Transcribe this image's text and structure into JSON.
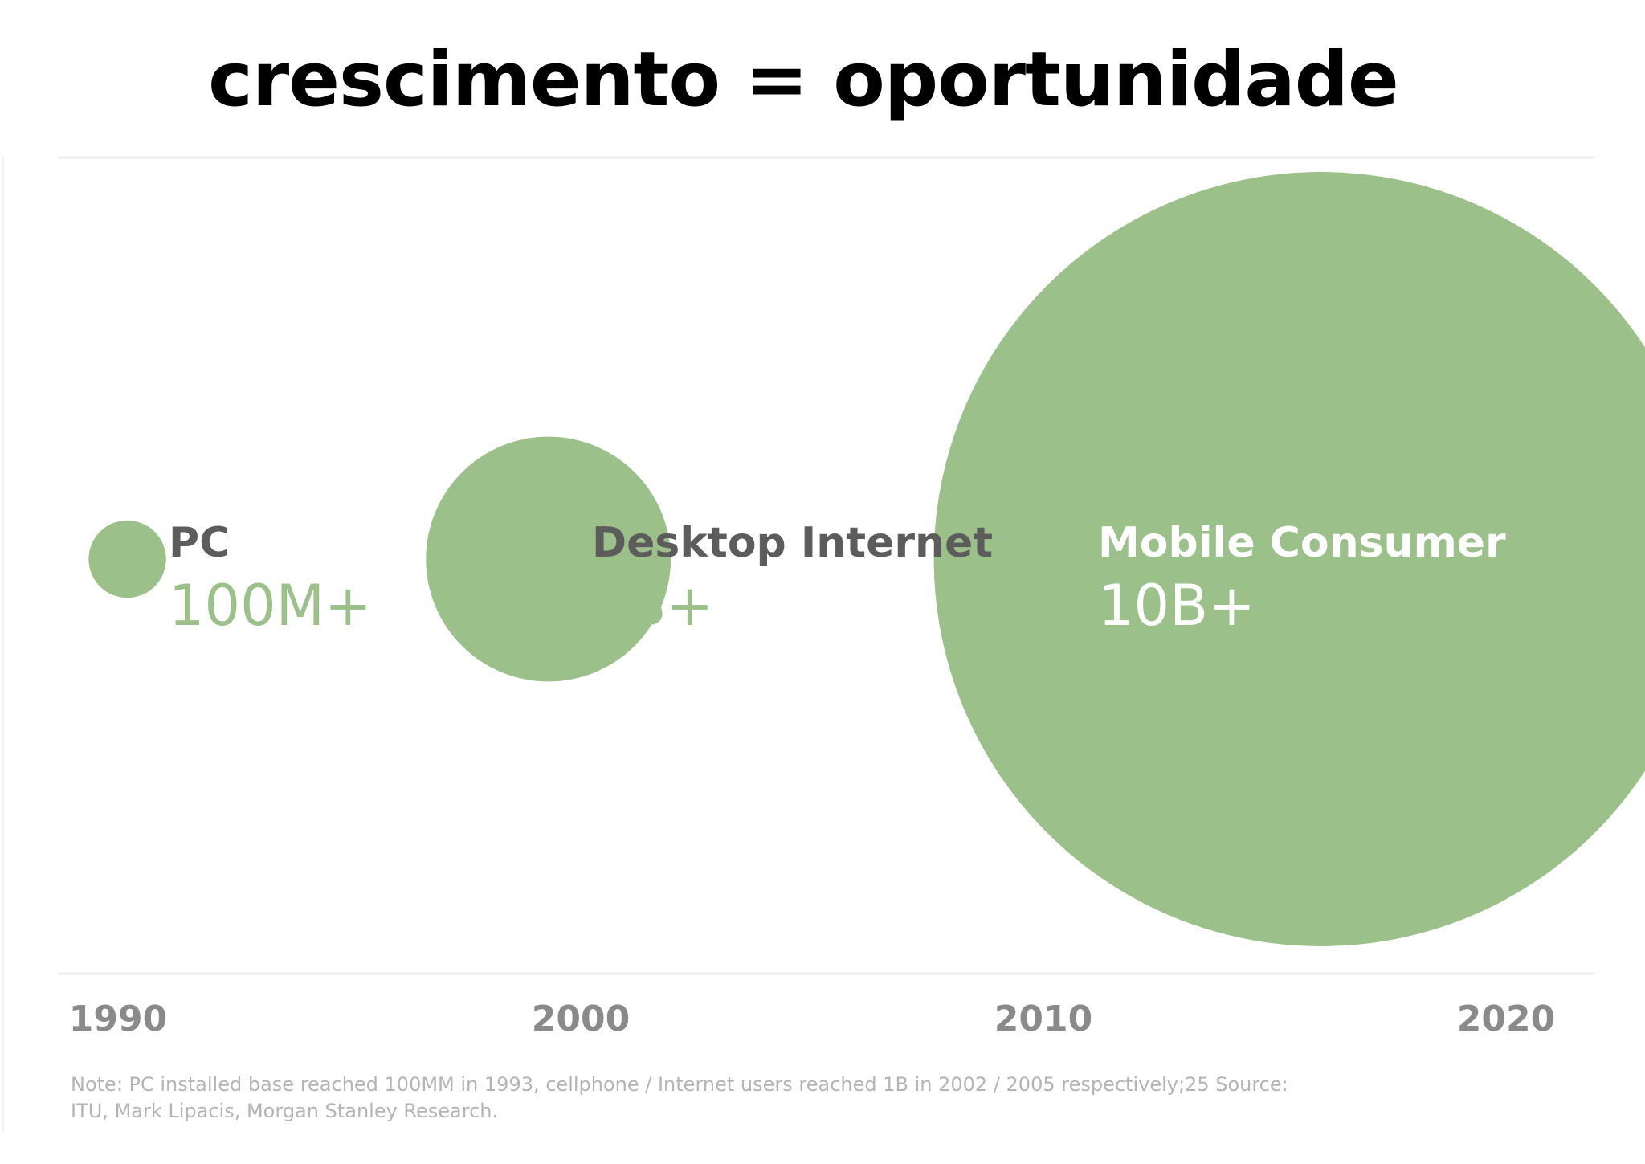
{
  "title": "crescimento = oportunidade",
  "chart_data": {
    "type": "bubble",
    "title": "crescimento = oportunidade",
    "x_ticks": [
      "1990",
      "2000",
      "2010",
      "2020"
    ],
    "xlim": [
      1990,
      2020
    ],
    "grid": false,
    "bubble_color": "#9cc08a",
    "series": [
      {
        "name": "PC",
        "value_label": "100M+",
        "value": 100000000,
        "x": 1990.2
      },
      {
        "name": "Desktop Internet",
        "value_label": "1B+",
        "value": 1000000000,
        "x": 1999.3
      },
      {
        "name": "Mobile Consumer",
        "value_label": "10B+",
        "value": 10000000000,
        "x": 2016
      }
    ],
    "note": [
      "Note: PC installed base reached 100MM in 1993, cellphone / Internet users reached 1B in 2002 / 2005 respectively;25 Source:",
      "ITU, Mark Lipacis, Morgan Stanley Research."
    ]
  }
}
